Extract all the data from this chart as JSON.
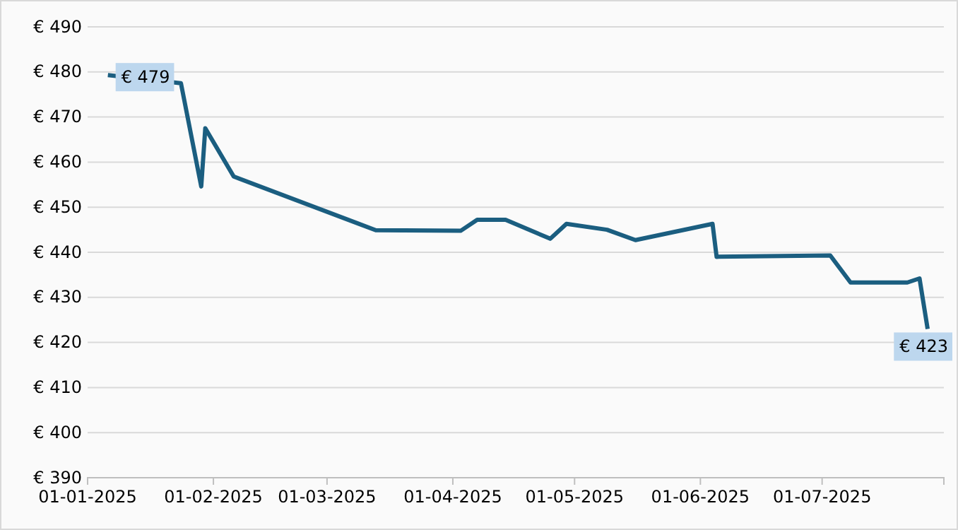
{
  "chart_data": {
    "type": "line",
    "x": [
      "2025-01-06",
      "2025-01-24",
      "2025-01-29",
      "2025-01-30",
      "2025-02-06",
      "2025-03-13",
      "2025-04-03",
      "2025-04-07",
      "2025-04-14",
      "2025-04-25",
      "2025-04-29",
      "2025-05-09",
      "2025-05-16",
      "2025-06-04",
      "2025-06-05",
      "2025-07-03",
      "2025-07-08",
      "2025-07-22",
      "2025-07-25",
      "2025-07-27"
    ],
    "series": [
      {
        "color": "#1b5e80",
        "values": [
          479.3,
          477.5,
          454.6,
          467.5,
          456.8,
          444.9,
          444.8,
          447.2,
          447.2,
          443,
          446.3,
          445,
          442.7,
          446.3,
          439,
          439.3,
          433.3,
          433.3,
          434.2,
          423
        ]
      }
    ],
    "xlim": [
      "2025-01-01",
      "2025-07-31"
    ],
    "xticks": [
      {
        "value": "2025-01-01",
        "label": "01-01-2025"
      },
      {
        "value": "2025-02-01",
        "label": "01-02-2025"
      },
      {
        "value": "2025-03-01",
        "label": "01-03-2025"
      },
      {
        "value": "2025-04-01",
        "label": "01-04-2025"
      },
      {
        "value": "2025-05-01",
        "label": "01-05-2025"
      },
      {
        "value": "2025-06-01",
        "label": "01-06-2025"
      },
      {
        "value": "2025-07-01",
        "label": "01-07-2025"
      }
    ],
    "ylim": [
      390,
      490
    ],
    "yticks": [
      {
        "value": 390,
        "label": "€ 390"
      },
      {
        "value": 400,
        "label": "€ 400"
      },
      {
        "value": 410,
        "label": "€ 410"
      },
      {
        "value": 420,
        "label": "€ 420"
      },
      {
        "value": 430,
        "label": "€ 430"
      },
      {
        "value": 440,
        "label": "€ 440"
      },
      {
        "value": 450,
        "label": "€ 450"
      },
      {
        "value": 460,
        "label": "€ 460"
      },
      {
        "value": 470,
        "label": "€ 470"
      },
      {
        "value": 480,
        "label": "€ 480"
      },
      {
        "value": 490,
        "label": "€ 490"
      }
    ],
    "grid": "y",
    "marker": "none",
    "line_style": "solid",
    "annotations": [
      {
        "text": "€ 479",
        "x": "2025-01-10",
        "y": 479
      },
      {
        "text": "€ 423",
        "x": "2025-07-27",
        "y": 423
      }
    ]
  }
}
